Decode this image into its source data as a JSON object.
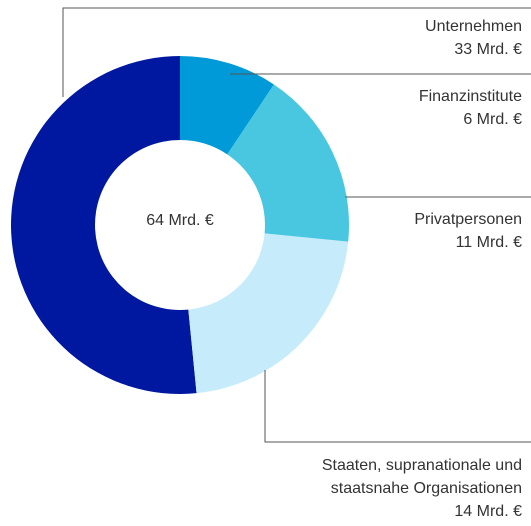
{
  "chart_data": {
    "type": "donut",
    "categories": [
      "Finanzinstitute",
      "Privatpersonen",
      "Staaten, supranationale und staatsnahe Organisationen",
      "Unternehmen"
    ],
    "values": [
      6,
      11,
      14,
      33
    ],
    "value_labels": [
      "6 Mrd. €",
      "11 Mrd. €",
      "14 Mrd. €",
      "33 Mrd. €"
    ],
    "colors": [
      "#009ad8",
      "#49c7e1",
      "#c6ecfb",
      "#0018a0"
    ],
    "center_label": "64 Mrd. €"
  }
}
